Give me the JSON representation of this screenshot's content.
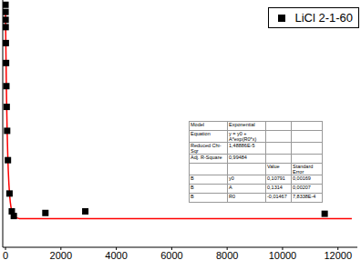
{
  "chart_data": {
    "type": "scatter",
    "xlim": [
      -100,
      12700
    ],
    "xticks": [
      0,
      2000,
      4000,
      6000,
      8000,
      10000,
      12000
    ],
    "ylim": [
      0.09,
      0.245
    ],
    "tick_labels": "x",
    "legend": "top-right",
    "series": [
      {
        "name": "LiCl 2-1-60",
        "type": "scatter",
        "marker": "square",
        "color": "#000000",
        "x": [
          0,
          2,
          4,
          6,
          12,
          20,
          31,
          43,
          59,
          87,
          144,
          228,
          300,
          1440,
          2880,
          11520
        ],
        "values": [
          0.242,
          0.2375,
          0.2326,
          0.228,
          0.218,
          0.2055,
          0.191,
          0.178,
          0.163,
          0.1446,
          0.1237,
          0.1125,
          0.1096,
          0.1115,
          0.1125,
          0.111
        ]
      },
      {
        "type": "line",
        "color": "#ff0000",
        "x": [
          0,
          10,
          20,
          30,
          40,
          60,
          80,
          100,
          150,
          200,
          300,
          500,
          1000,
          12500
        ],
        "values": [
          0.2393,
          0.2214,
          0.2059,
          0.1925,
          0.181,
          0.1624,
          0.1486,
          0.1382,
          0.1225,
          0.1149,
          0.1095,
          0.108,
          0.1079,
          0.1079
        ]
      }
    ],
    "fit_table": {
      "rows": [
        [
          "Model",
          "Exponential",
          "",
          ""
        ],
        [
          "Equation",
          "y = y0 + A*exp(R0*x)",
          "",
          ""
        ],
        [
          "Reduced Chi-Sqr",
          "1,48886E-5",
          "",
          ""
        ],
        [
          "Adj. R-Square",
          "0,99484",
          "",
          ""
        ],
        [
          "",
          "",
          "Value",
          "Standard Error"
        ],
        [
          "B",
          "y0",
          "0,10791",
          "0,00169"
        ],
        [
          "B",
          "A",
          "0,1314",
          "0,00207"
        ],
        [
          "B",
          "R0",
          "-0,01467",
          "7,8338E-4"
        ]
      ]
    }
  }
}
